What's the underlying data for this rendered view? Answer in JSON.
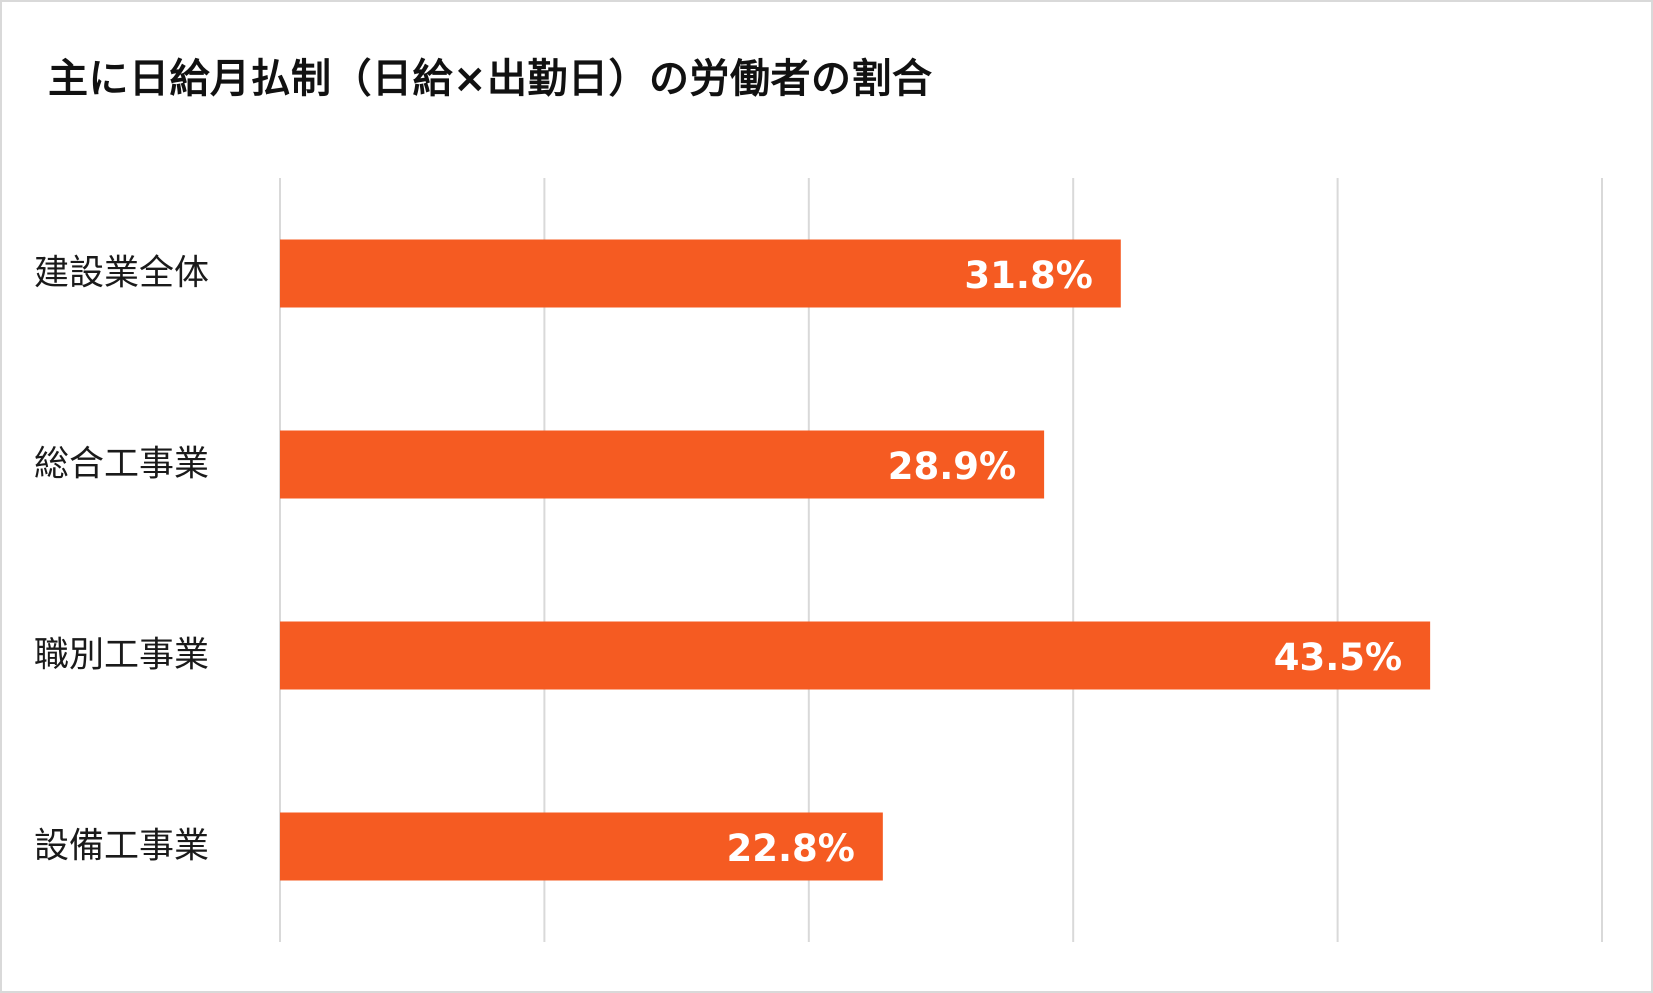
{
  "chart_data": {
    "type": "bar",
    "orientation": "horizontal",
    "title": "主に日給月払制（日給×出勤日）の労働者の割合",
    "categories": [
      "建設業全体",
      "総合工事業",
      "職別工事業",
      "設備工事業"
    ],
    "values": [
      31.8,
      28.9,
      43.5,
      22.8
    ],
    "value_labels": [
      "31.8%",
      "28.9%",
      "43.5%",
      "22.8%"
    ],
    "xlim": [
      0,
      50
    ],
    "grid": true,
    "bar_color": "#F55B22",
    "gridline_color": "#D9D9D9"
  }
}
